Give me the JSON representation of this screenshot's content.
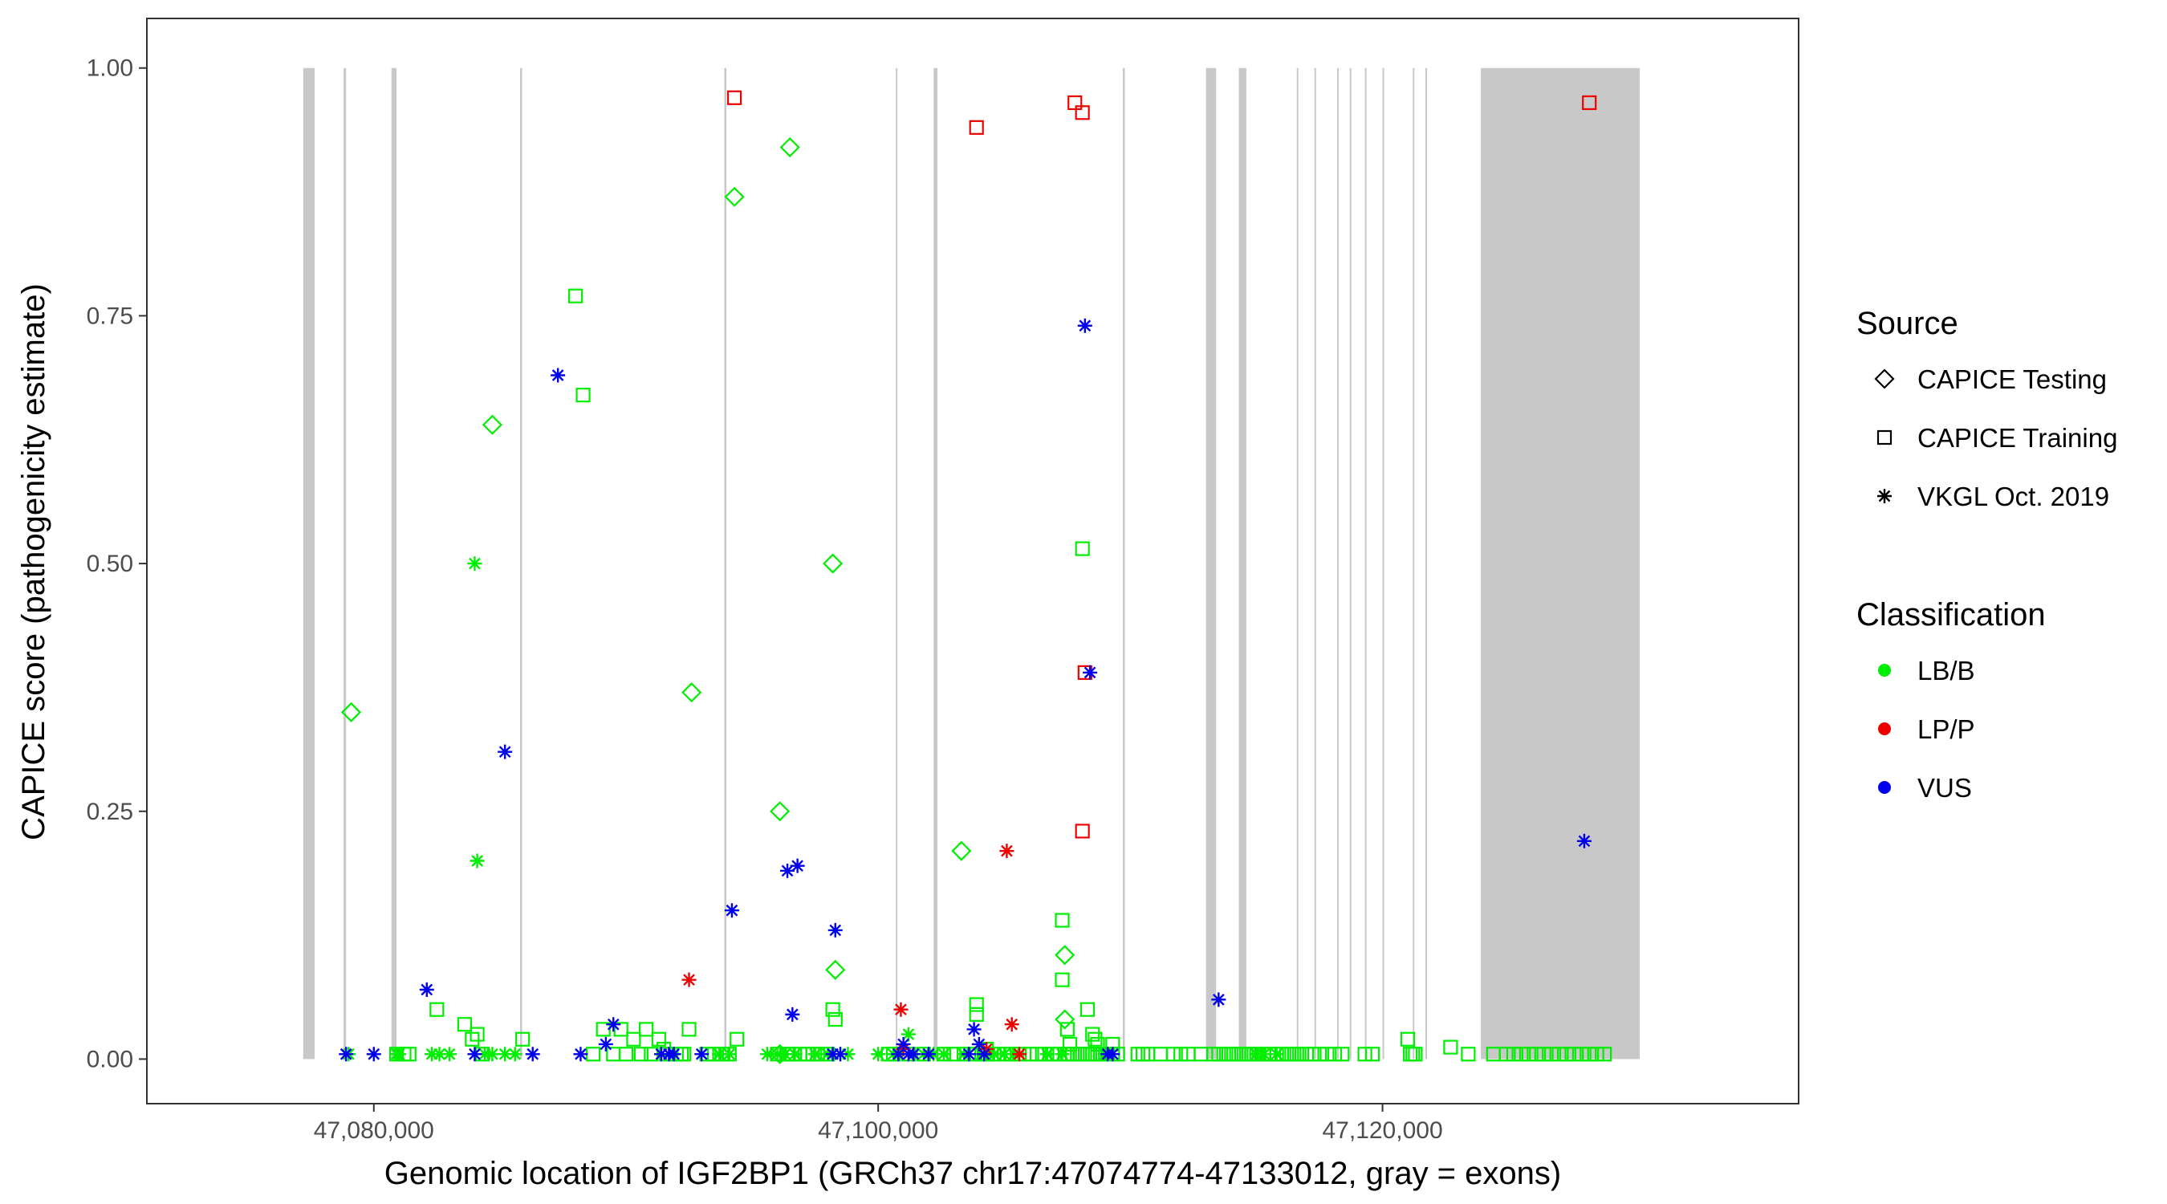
{
  "chart_data": {
    "type": "scatter",
    "xlabel": "Genomic location of IGF2BP1 (GRCh37 chr17:47074774-47133012, gray = exons)",
    "ylabel": "CAPICE score (pathogenicity estimate)",
    "xlim": [
      47071000,
      47136500
    ],
    "ylim": [
      -0.045,
      1.05
    ],
    "x_ticks": [
      47080000,
      47100000,
      47120000
    ],
    "x_tick_labels": [
      "47,080,000",
      "47,100,000",
      "47,120,000"
    ],
    "y_ticks": [
      0.0,
      0.25,
      0.5,
      0.75,
      1.0
    ],
    "y_tick_labels": [
      "0.00",
      "0.25",
      "0.50",
      "0.75",
      "1.00"
    ],
    "grid": false,
    "legend_position": "right",
    "legend": {
      "source_title": "Source",
      "source_items": [
        {
          "label": "CAPICE Testing",
          "shape": "diamond"
        },
        {
          "label": "CAPICE Training",
          "shape": "square"
        },
        {
          "label": "VKGL Oct. 2019",
          "shape": "asterisk"
        }
      ],
      "class_title": "Classification",
      "class_items": [
        {
          "label": "LB/B",
          "color": "#00ee00"
        },
        {
          "label": "LP/P",
          "color": "#ee0000"
        },
        {
          "label": "VUS",
          "color": "#0000ee"
        }
      ]
    },
    "exons": [
      [
        47077200,
        47077650
      ],
      [
        47078800,
        47078900
      ],
      [
        47080700,
        47080900
      ],
      [
        47085800,
        47085880
      ],
      [
        47093900,
        47093980
      ],
      [
        47100700,
        47100750
      ],
      [
        47102200,
        47102350
      ],
      [
        47109700,
        47109780
      ],
      [
        47113000,
        47113400
      ],
      [
        47114300,
        47114600
      ],
      [
        47116600,
        47116660
      ],
      [
        47117300,
        47117360
      ],
      [
        47118200,
        47118260
      ],
      [
        47118700,
        47118760
      ],
      [
        47119300,
        47119360
      ],
      [
        47120000,
        47120060
      ],
      [
        47121200,
        47121260
      ],
      [
        47121700,
        47121760
      ],
      [
        47123900,
        47130200
      ]
    ],
    "series": [
      {
        "name": "CAPICE Testing / LB/B",
        "shape": "diamond",
        "color": "#00ee00",
        "x": [
          47079100,
          47094300,
          47084700,
          47096500,
          47098200,
          47096100,
          47096100,
          47098300,
          47092600,
          47103300,
          47107400,
          47107400
        ],
        "y": [
          0.35,
          0.87,
          0.64,
          0.92,
          0.5,
          0.25,
          0.005,
          0.09,
          0.37,
          0.21,
          0.105,
          0.04
        ]
      },
      {
        "name": "CAPICE Training / LB/B",
        "shape": "square",
        "color": "#00ee00",
        "x": [
          47080900,
          47081200,
          47081400,
          47082500,
          47083600,
          47083900,
          47084100,
          47084300,
          47085900,
          47088000,
          47088300,
          47088700,
          47089100,
          47089500,
          47089800,
          47090000,
          47090300,
          47090600,
          47090800,
          47091000,
          47091300,
          47091500,
          47091600,
          47092000,
          47092200,
          47092300,
          47092500,
          47093200,
          47093500,
          47093800,
          47094100,
          47094400,
          47096000,
          47096400,
          47096600,
          47096900,
          47097200,
          47097400,
          47097600,
          47098000,
          47098200,
          47098300,
          47100400,
          47100600,
          47101200,
          47101800,
          47102600,
          47103000,
          47103400,
          47103800,
          47104200,
          47104600,
          47105000,
          47105300,
          47105600,
          47106000,
          47106300,
          47106600,
          47106900,
          47107200,
          47107500,
          47107700,
          47107900,
          47108100,
          47108300,
          47108500,
          47108700,
          47108900,
          47109100,
          47109300,
          47110300,
          47110500,
          47110700,
          47111200,
          47111700,
          47112000,
          47112300,
          47112800,
          47113300,
          47113500,
          47113700,
          47113900,
          47114100,
          47114300,
          47114500,
          47114700,
          47114900,
          47115100,
          47115300,
          47115500,
          47115800,
          47116000,
          47116200,
          47116400,
          47116600,
          47116800,
          47117000,
          47117200,
          47117500,
          47117800,
          47118100,
          47118400,
          47119300,
          47119600,
          47121200,
          47123400,
          47124400,
          47124900,
          47125200,
          47125500,
          47125800,
          47126100,
          47126400,
          47126700,
          47127000,
          47127300,
          47127600,
          47127900,
          47128200,
          47128500,
          47128800
        ],
        "y": [
          0.005,
          0.005,
          0.005,
          0.05,
          0.035,
          0.02,
          0.025,
          0.005,
          0.02,
          0.77,
          0.67,
          0.005,
          0.03,
          0.005,
          0.03,
          0.005,
          0.02,
          0.005,
          0.03,
          0.005,
          0.02,
          0.01,
          0.005,
          0.005,
          0.005,
          0.005,
          0.03,
          0.005,
          0.005,
          0.005,
          0.005,
          0.02,
          0.005,
          0.005,
          0.005,
          0.005,
          0.005,
          0.005,
          0.005,
          0.005,
          0.05,
          0.04,
          0.005,
          0.005,
          0.005,
          0.005,
          0.005,
          0.005,
          0.005,
          0.005,
          0.005,
          0.005,
          0.005,
          0.005,
          0.005,
          0.005,
          0.005,
          0.005,
          0.005,
          0.005,
          0.005,
          0.005,
          0.005,
          0.005,
          0.005,
          0.005,
          0.005,
          0.005,
          0.005,
          0.005,
          0.005,
          0.005,
          0.005,
          0.005,
          0.005,
          0.005,
          0.005,
          0.005,
          0.005,
          0.005,
          0.005,
          0.005,
          0.005,
          0.005,
          0.005,
          0.005,
          0.005,
          0.005,
          0.005,
          0.005,
          0.005,
          0.005,
          0.005,
          0.005,
          0.005,
          0.005,
          0.005,
          0.005,
          0.005,
          0.005,
          0.005,
          0.005,
          0.005,
          0.005,
          0.005,
          0.005,
          0.005,
          0.005,
          0.005,
          0.005,
          0.005,
          0.005,
          0.005,
          0.005,
          0.005,
          0.005,
          0.005,
          0.005,
          0.005,
          0.005,
          0.005
        ]
      },
      {
        "name": "CAPICE Training / LB/B (upper)",
        "shape": "square",
        "color": "#00ee00",
        "x": [
          47103900,
          47103900,
          47104300,
          47104300,
          47107300,
          47107300,
          47107500,
          47107600,
          47107900,
          47108100,
          47108300,
          47108500,
          47108600,
          47108700,
          47108900,
          47109300,
          47109500,
          47121000,
          47121100,
          47121300,
          47122700,
          47108000,
          47104100
        ],
        "y": [
          0.055,
          0.045,
          0.005,
          0.01,
          0.14,
          0.08,
          0.03,
          0.015,
          0.005,
          0.515,
          0.05,
          0.025,
          0.02,
          0.015,
          0.005,
          0.015,
          0.005,
          0.02,
          0.005,
          0.005,
          0.012,
          0.005,
          0.005
        ]
      },
      {
        "name": "CAPICE Training / LP/P",
        "shape": "square",
        "color": "#ee0000",
        "x": [
          47094300,
          47103900,
          47107800,
          47108100,
          47108200,
          47108100,
          47128200
        ],
        "y": [
          0.97,
          0.94,
          0.965,
          0.955,
          0.39,
          0.23,
          0.965
        ]
      },
      {
        "name": "VKGL Oct. 2019 / LB/B",
        "shape": "asterisk",
        "color": "#00ee00",
        "x": [
          47079000,
          47080900,
          47081000,
          47082300,
          47082600,
          47083000,
          47084000,
          47084100,
          47084400,
          47084700,
          47085200,
          47085600,
          47093700,
          47094100,
          47095600,
          47096000,
          47096300,
          47096700,
          47097500,
          47098000,
          47098800,
          47100600,
          47101200,
          47101800,
          47102200,
          47102600,
          47103400,
          47104100,
          47104600,
          47105000,
          47105400,
          47106700,
          47107300,
          47109000,
          47109300,
          47115000,
          47115300,
          47115800,
          47100000,
          47098500
        ],
        "y": [
          0.005,
          0.005,
          0.005,
          0.005,
          0.005,
          0.005,
          0.5,
          0.2,
          0.005,
          0.005,
          0.005,
          0.005,
          0.005,
          0.005,
          0.005,
          0.005,
          0.005,
          0.005,
          0.005,
          0.005,
          0.005,
          0.005,
          0.025,
          0.005,
          0.005,
          0.005,
          0.005,
          0.005,
          0.005,
          0.005,
          0.005,
          0.005,
          0.005,
          0.005,
          0.005,
          0.005,
          0.005,
          0.005,
          0.005,
          0.005
        ]
      },
      {
        "name": "VKGL Oct. 2019 / LP/P",
        "shape": "asterisk",
        "color": "#ee0000",
        "x": [
          47092500,
          47100900,
          47101000,
          47104300,
          47105100,
          47105300,
          47105600
        ],
        "y": [
          0.08,
          0.05,
          0.01,
          0.01,
          0.21,
          0.035,
          0.005
        ]
      },
      {
        "name": "VKGL Oct. 2019 / VUS",
        "shape": "asterisk",
        "color": "#0000ee",
        "x": [
          47078900,
          47080000,
          47082100,
          47084000,
          47085200,
          47086300,
          47087300,
          47088200,
          47089200,
          47089500,
          47091400,
          47091700,
          47091900,
          47094200,
          47096400,
          47096600,
          47096800,
          47098300,
          47098500,
          47100800,
          47101000,
          47101200,
          47101400,
          47102000,
          47103600,
          47103800,
          47104000,
          47104200,
          47108200,
          47108400,
          47109100,
          47109300,
          47113500,
          47128000,
          47093000,
          47098200
        ],
        "y": [
          0.005,
          0.005,
          0.07,
          0.005,
          0.31,
          0.005,
          0.69,
          0.005,
          0.015,
          0.035,
          0.005,
          0.005,
          0.005,
          0.15,
          0.19,
          0.045,
          0.195,
          0.13,
          0.005,
          0.005,
          0.015,
          0.005,
          0.005,
          0.005,
          0.005,
          0.03,
          0.015,
          0.005,
          0.74,
          0.39,
          0.005,
          0.005,
          0.06,
          0.22,
          0.005,
          0.005
        ]
      }
    ]
  }
}
